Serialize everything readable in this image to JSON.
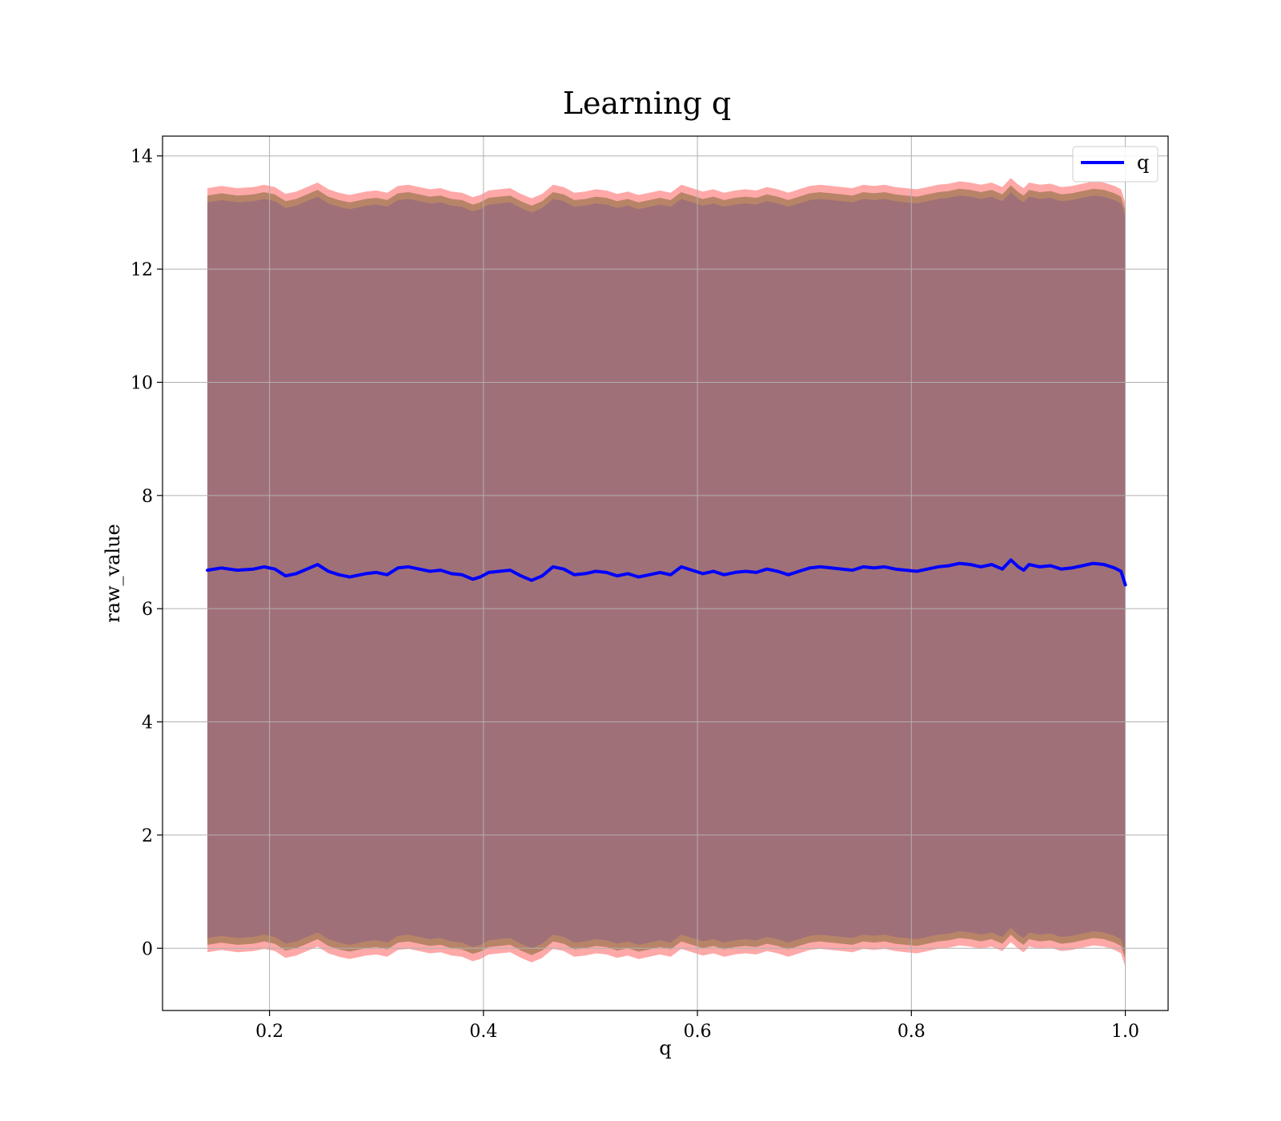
{
  "chart_data": {
    "type": "line",
    "title": "Learning q",
    "xlabel": "q",
    "ylabel": "raw_value",
    "xlim": [
      0.1,
      1.04
    ],
    "ylim": [
      -1.1,
      14.35
    ],
    "x_ticks": [
      0.2,
      0.4,
      0.6,
      0.8,
      1.0
    ],
    "x_tick_labels": [
      "0.2",
      "0.4",
      "0.6",
      "0.8",
      "1.0"
    ],
    "y_ticks": [
      0,
      2,
      4,
      6,
      8,
      10,
      12,
      14
    ],
    "y_tick_labels": [
      "0",
      "2",
      "4",
      "6",
      "8",
      "10",
      "12",
      "14"
    ],
    "grid": true,
    "legend": {
      "position": "upper right",
      "entries": [
        "q"
      ]
    },
    "colors": {
      "line": "#0000ff",
      "outer_band": "#ff9999",
      "inner_band": "#b08060",
      "core_band": "#a07078",
      "grid": "#b0b0b0"
    },
    "series": [
      {
        "name": "q",
        "x": [
          0.142,
          0.155,
          0.17,
          0.185,
          0.195,
          0.205,
          0.215,
          0.225,
          0.235,
          0.245,
          0.255,
          0.265,
          0.275,
          0.29,
          0.3,
          0.31,
          0.32,
          0.33,
          0.34,
          0.35,
          0.36,
          0.37,
          0.38,
          0.39,
          0.397,
          0.405,
          0.415,
          0.425,
          0.435,
          0.445,
          0.455,
          0.465,
          0.475,
          0.485,
          0.495,
          0.505,
          0.515,
          0.525,
          0.535,
          0.545,
          0.555,
          0.565,
          0.575,
          0.585,
          0.595,
          0.605,
          0.615,
          0.625,
          0.635,
          0.645,
          0.655,
          0.665,
          0.675,
          0.685,
          0.695,
          0.705,
          0.715,
          0.725,
          0.735,
          0.745,
          0.755,
          0.765,
          0.775,
          0.785,
          0.795,
          0.805,
          0.815,
          0.825,
          0.835,
          0.845,
          0.855,
          0.865,
          0.875,
          0.885,
          0.893,
          0.9,
          0.905,
          0.91,
          0.92,
          0.93,
          0.94,
          0.95,
          0.96,
          0.97,
          0.98,
          0.99,
          0.996,
          1.0
        ],
        "y": [
          6.68,
          6.72,
          6.68,
          6.7,
          6.74,
          6.7,
          6.58,
          6.62,
          6.7,
          6.78,
          6.66,
          6.6,
          6.56,
          6.62,
          6.64,
          6.6,
          6.72,
          6.74,
          6.7,
          6.66,
          6.68,
          6.62,
          6.6,
          6.52,
          6.56,
          6.64,
          6.66,
          6.68,
          6.58,
          6.5,
          6.58,
          6.74,
          6.7,
          6.6,
          6.62,
          6.66,
          6.64,
          6.58,
          6.62,
          6.56,
          6.6,
          6.64,
          6.6,
          6.74,
          6.68,
          6.62,
          6.66,
          6.6,
          6.64,
          6.66,
          6.64,
          6.7,
          6.66,
          6.6,
          6.66,
          6.72,
          6.74,
          6.72,
          6.7,
          6.68,
          6.74,
          6.72,
          6.74,
          6.7,
          6.68,
          6.66,
          6.7,
          6.74,
          6.76,
          6.8,
          6.78,
          6.74,
          6.78,
          6.7,
          6.86,
          6.74,
          6.68,
          6.78,
          6.74,
          6.76,
          6.7,
          6.72,
          6.76,
          6.8,
          6.78,
          6.72,
          6.66,
          6.42
        ]
      }
    ],
    "bands": [
      {
        "half_width": 6.75,
        "color": "outer_band",
        "opacity": 0.85
      },
      {
        "half_width": 6.62,
        "color": "inner_band",
        "opacity": 0.9
      },
      {
        "half_width": 6.5,
        "color": "core_band",
        "opacity": 1.0
      }
    ]
  }
}
